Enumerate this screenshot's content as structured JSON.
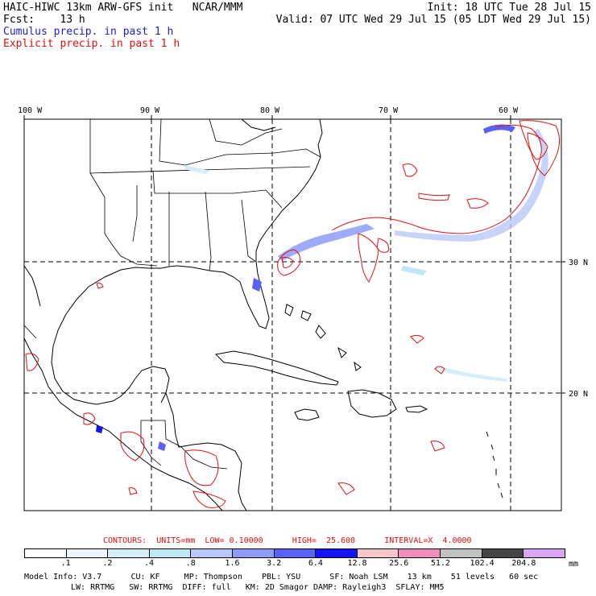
{
  "header": {
    "model_line": "HAIC-HIWC 13km ARW-GFS init   NCAR/MMM",
    "forecast_line": "Fcst:    13 h",
    "init_line": "Init: 18 UTC Tue 28 Jul 15",
    "valid_line": "Valid: 07 UTC Wed 29 Jul 15 (05 LDT Wed 29 Jul 15)",
    "cumulus_label": "Cumulus precip. in past 1 h",
    "explicit_label": "Explicit precip. in past 1 h"
  },
  "map": {
    "lon_labels": [
      "100 W",
      "90 W",
      "80 W",
      "70 W",
      "60 W"
    ],
    "lat_labels": [
      "30 N",
      "20 N"
    ],
    "colors": {
      "land": "#000000",
      "grid": "#000000",
      "explicit": "#e01010",
      "cumulus": "#3050e0"
    }
  },
  "legend": {
    "contours_line": "CONTOURS:  UNITS=mm  LOW= 0.10000      HIGH=  25.600      INTERVAL=X  4.0000",
    "values": [
      ".1",
      ".2",
      ".4",
      ".8",
      "1.6",
      "3.2",
      "6.4",
      "12.8",
      "25.6",
      "51.2",
      "102.4",
      "204.8"
    ],
    "unit": "mm",
    "colors": [
      "#ffffff",
      "#eef6fb",
      "#d6eef8",
      "#bfe7f4",
      "#b9c8f8",
      "#8c9cf8",
      "#5a62f4",
      "#1414f0",
      "#f7c6cb",
      "#f28cba",
      "#c2c2c2",
      "#454545",
      "#d9a6f5"
    ]
  },
  "footer": {
    "line1": "Model Info: V3.7      CU: KF     MP: Thompson    PBL: YSU      SF: Noah LSM    13 km    51 levels   60 sec",
    "line2": "LW: RRTMG   SW: RRTMG  DIFF: full   KM: 2D Smagor DAMP: Rayleigh3  SFLAY: MM5"
  }
}
